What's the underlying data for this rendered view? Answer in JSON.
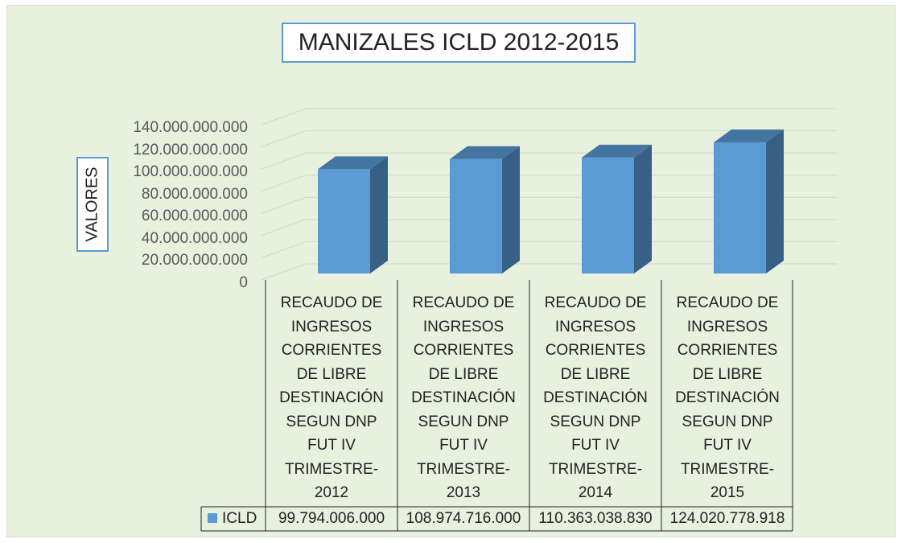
{
  "chart_data": {
    "type": "bar",
    "title": "MANIZALES ICLD 2012-2015",
    "y_label": "VALORES",
    "categories": [
      "RECAUDO DE INGRESOS CORRIENTES DE LIBRE DESTINACIÓN SEGUN DNP FUT IV TRIMESTRE-2012",
      "RECAUDO DE INGRESOS CORRIENTES DE LIBRE DESTINACIÓN SEGUN DNP FUT IV TRIMESTRE-2013",
      "RECAUDO DE INGRESOS CORRIENTES DE LIBRE DESTINACIÓN SEGUN DNP FUT IV TRIMESTRE-2014",
      "RECAUDO DE INGRESOS CORRIENTES DE LIBRE DESTINACIÓN SEGUN DNP FUT IV TRIMESTRE-2015"
    ],
    "series": [
      {
        "name": "ICLD",
        "color": "#5b9bd5",
        "values": [
          99794006000,
          108974716000,
          110363038830,
          124020778918
        ],
        "value_labels": [
          "99.794.006.000",
          "108.974.716.000",
          "110.363.038.830",
          "124.020.778.918"
        ]
      }
    ],
    "ylim": [
      0,
      140000000000
    ],
    "yticks": [
      0,
      {
        "value": 20000000000,
        "label": "20.000.000.000"
      },
      {
        "value": 40000000000,
        "label": "40.000.000.000"
      },
      {
        "value": 60000000000,
        "label": "60.000.000.000"
      },
      {
        "value": 80000000000,
        "label": "80.000.000.000"
      },
      {
        "value": 100000000000,
        "label": "100.000.000.000"
      },
      {
        "value": 120000000000,
        "label": "120.000.000.000"
      },
      {
        "value": 140000000000,
        "label": "140.000.000.000"
      }
    ],
    "grid": true
  }
}
